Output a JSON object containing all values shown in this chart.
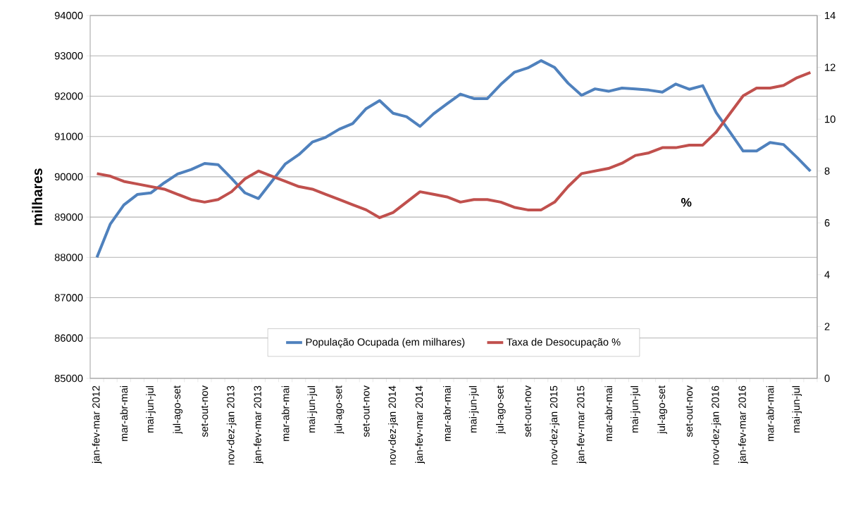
{
  "chart_data": {
    "type": "line",
    "ylabel": "milhares",
    "categories": [
      "jan-fev-mar 2012",
      null,
      "mar-abr-mai",
      null,
      "mai-jun-jul",
      null,
      "jul-ago-set",
      null,
      "set-out-nov",
      null,
      "nov-dez-jan 2013",
      null,
      "jan-fev-mar 2013",
      null,
      "mar-abr-mai",
      null,
      "mai-jun-jul",
      null,
      "jul-ago-set",
      null,
      "set-out-nov",
      null,
      "nov-dez-jan 2014",
      null,
      "jan-fev-mar 2014",
      null,
      "mar-abr-mai",
      null,
      "mai-jun-jul",
      null,
      "jul-ago-set",
      null,
      "set-out-nov",
      null,
      "nov-dez-jan 2015",
      null,
      "jan-fev-mar 2015",
      null,
      "mar-abr-mai",
      null,
      "mai-jun-jul",
      null,
      "jul-ago-set",
      null,
      "set-out-nov",
      null,
      "nov-dez-jan 2016",
      null,
      "jan-fev-mar 2016",
      null,
      "mar-abr-mai",
      null,
      "mai-jun-jul",
      null
    ],
    "series": [
      {
        "name": "População Ocupada (em milhares)",
        "color": "#4f81bd",
        "values": [
          88000,
          88830,
          89300,
          89560,
          89600,
          89850,
          90070,
          90180,
          90330,
          90300,
          89960,
          89600,
          89460,
          89890,
          90320,
          90550,
          90860,
          90980,
          91180,
          91320,
          91690,
          91890,
          91575,
          91490,
          91250,
          91560,
          91810,
          92050,
          91940,
          91940,
          92290,
          92590,
          92700,
          92880,
          92710,
          92320,
          92020,
          92180,
          92120,
          92200,
          92180,
          92150,
          92100,
          92300,
          92170,
          92260,
          91590,
          91120,
          90640,
          90640,
          90850,
          90800,
          90480,
          90140
        ]
      },
      {
        "name": "Taxa de Desocupação  %",
        "color": "#c0504d",
        "axis": "y2",
        "values": [
          7.9,
          7.8,
          7.6,
          7.5,
          7.4,
          7.3,
          7.1,
          6.9,
          6.8,
          6.9,
          7.2,
          7.7,
          8.0,
          7.8,
          7.6,
          7.4,
          7.3,
          7.1,
          6.9,
          6.7,
          6.5,
          6.2,
          6.4,
          6.8,
          7.2,
          7.1,
          7.0,
          6.8,
          6.9,
          6.9,
          6.8,
          6.6,
          6.5,
          6.5,
          6.8,
          7.4,
          7.9,
          8.0,
          8.1,
          8.3,
          8.6,
          8.7,
          8.9,
          8.9,
          9.0,
          9.0,
          9.5,
          10.2,
          10.9,
          11.2,
          11.2,
          11.3,
          11.6,
          11.8
        ]
      }
    ],
    "ylim": [
      85000,
      94000
    ],
    "yticks": [
      85000,
      86000,
      87000,
      88000,
      89000,
      90000,
      91000,
      92000,
      93000,
      94000
    ],
    "y2lim": [
      0,
      14
    ],
    "y2ticks": [
      0,
      2,
      4,
      6,
      8,
      10,
      12,
      14
    ],
    "annotations": [
      "%"
    ],
    "grid": "y",
    "legend": "bottom",
    "marker": "none",
    "line_style": "solid"
  }
}
